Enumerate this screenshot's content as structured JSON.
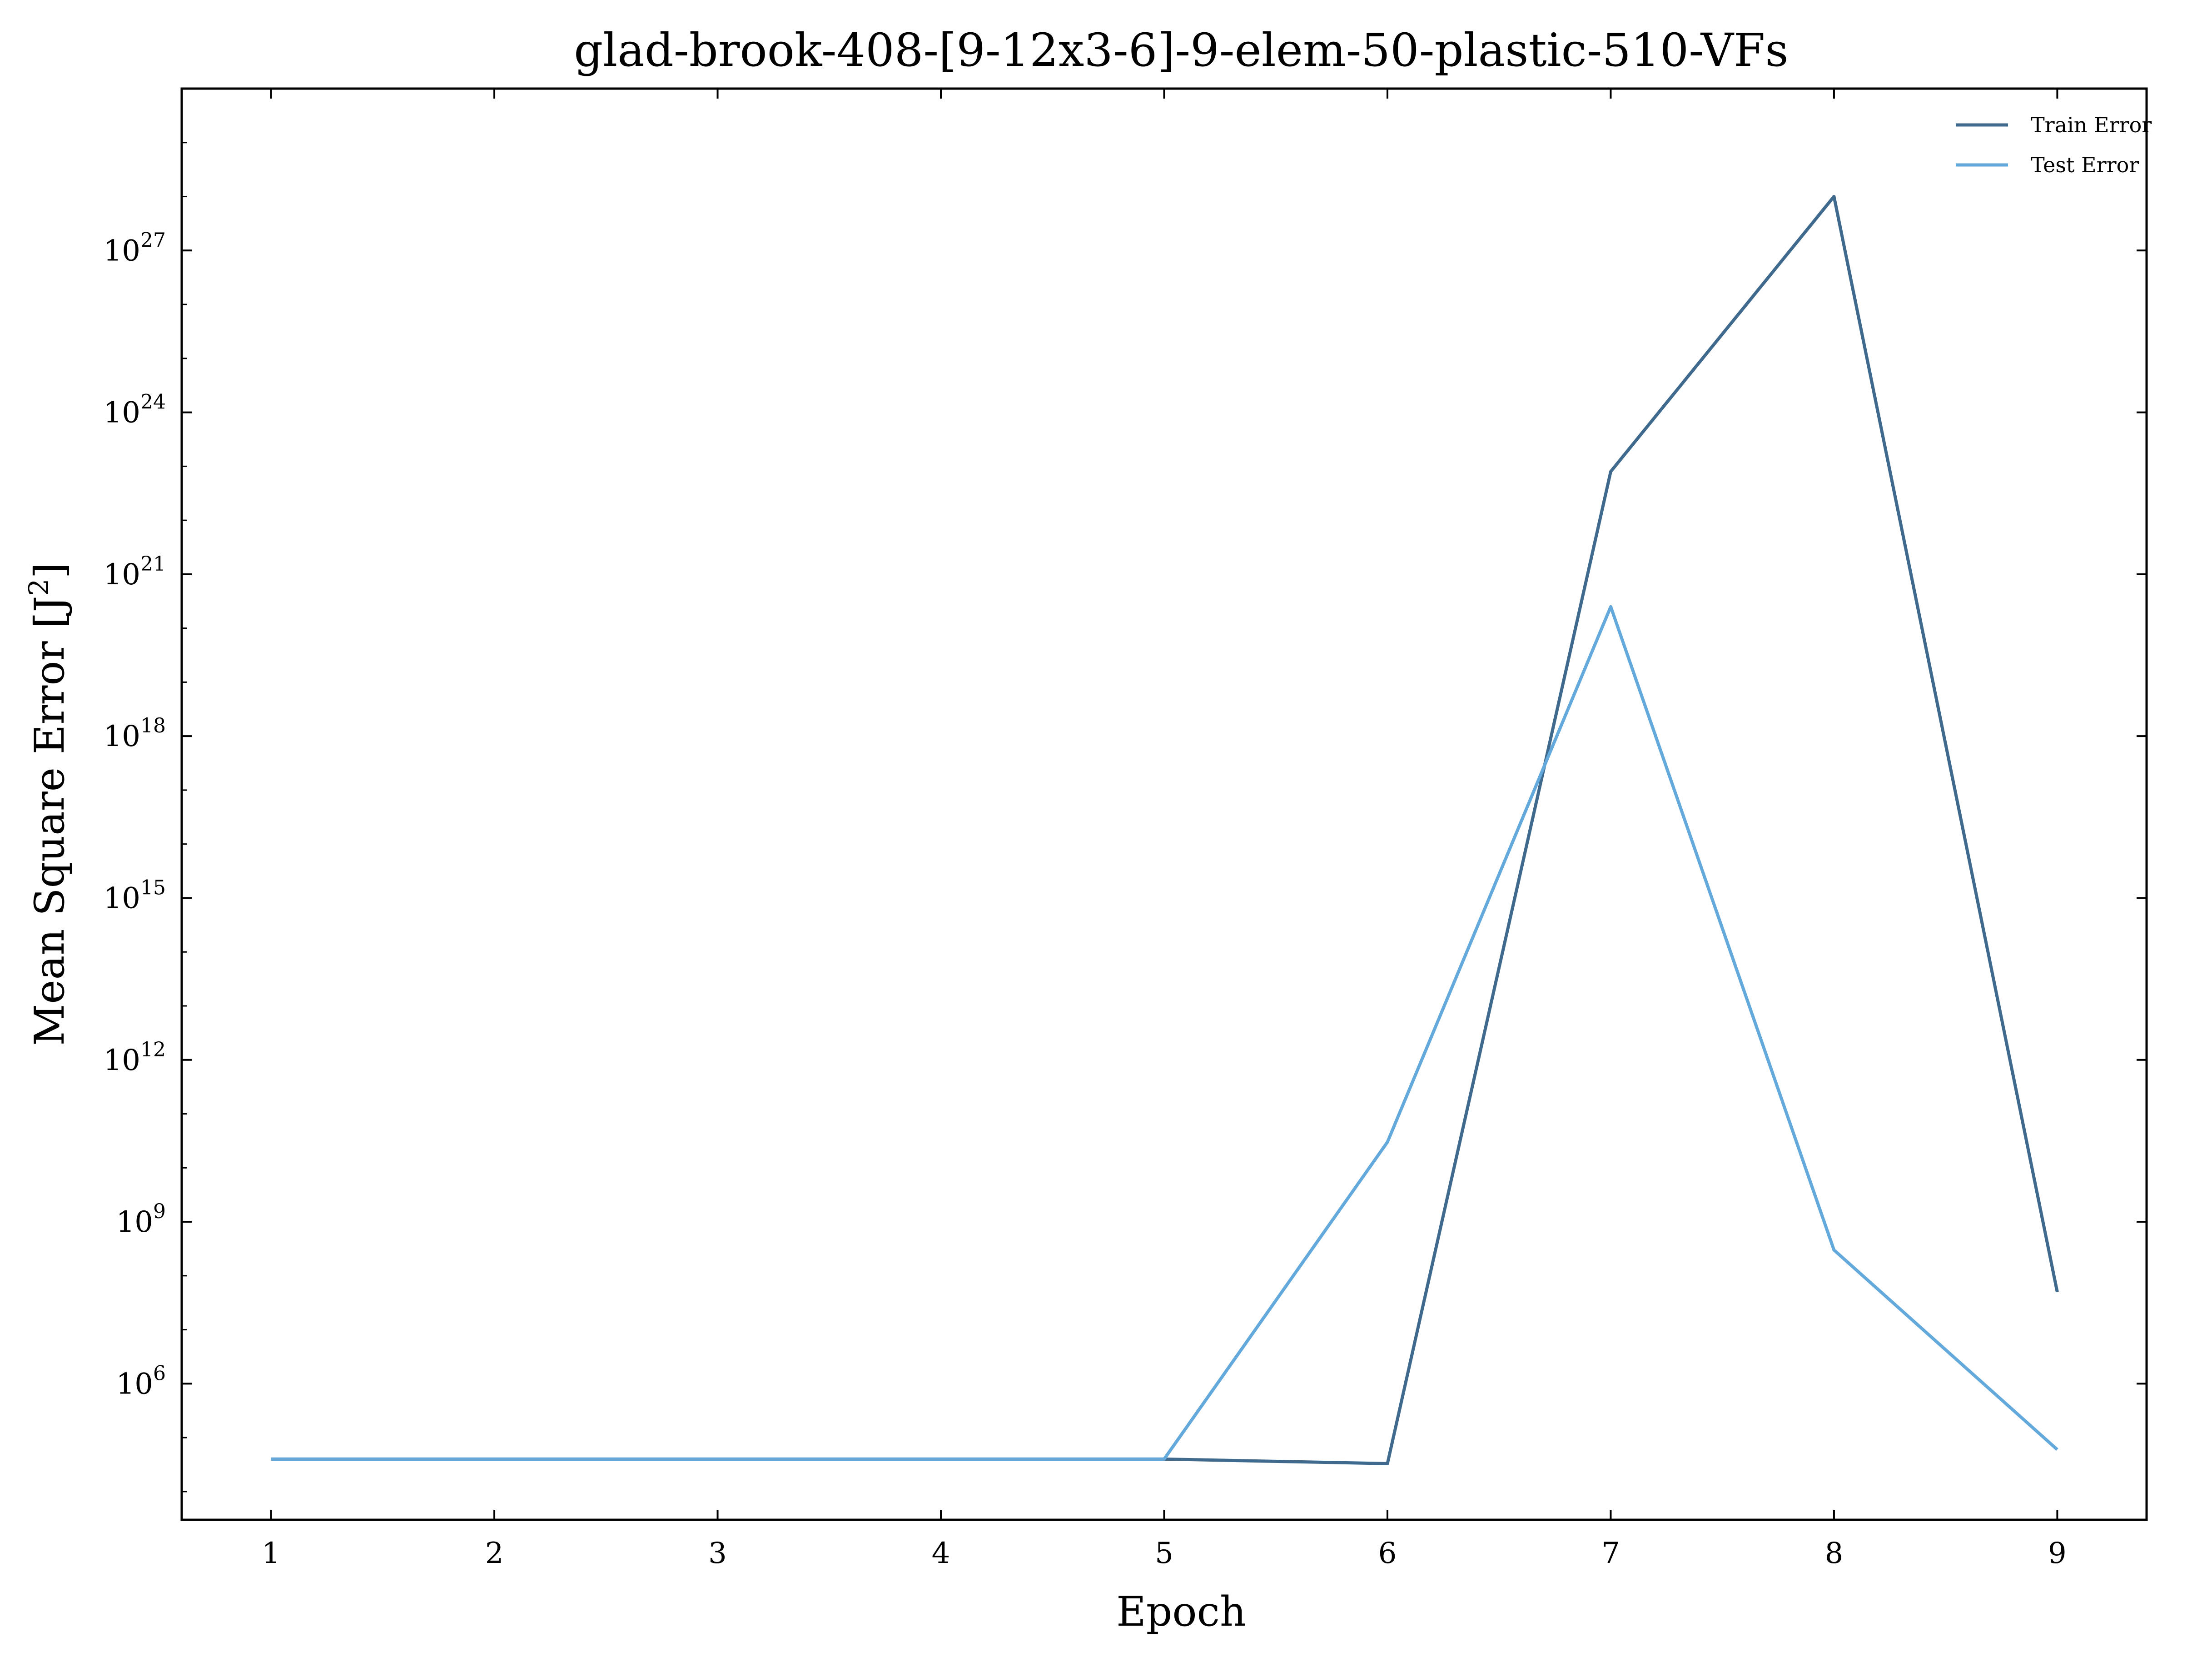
{
  "chart_data": {
    "type": "line",
    "title": "glad-brook-408-[9-12x3-6]-9-elem-50-plastic-510-VFs",
    "xlabel": "Epoch",
    "ylabel_main": "Mean Square Error [J",
    "ylabel_sup": "2",
    "ylabel_tail": "]",
    "x": [
      1,
      2,
      3,
      4,
      5,
      6,
      7,
      8,
      9
    ],
    "x_ticks": [
      "1",
      "2",
      "3",
      "4",
      "5",
      "6",
      "7",
      "8",
      "9"
    ],
    "xlim": [
      0.6,
      9.4
    ],
    "y_scale": "log",
    "ylim": [
      3000.0,
      1e+30
    ],
    "y_ticks": [
      {
        "value": 1000000.0,
        "base": "10",
        "exp": "6"
      },
      {
        "value": 1000000000.0,
        "base": "10",
        "exp": "9"
      },
      {
        "value": 1000000000000.0,
        "base": "10",
        "exp": "12"
      },
      {
        "value": 1000000000000000.0,
        "base": "10",
        "exp": "15"
      },
      {
        "value": 1e+18,
        "base": "10",
        "exp": "18"
      },
      {
        "value": 1e+21,
        "base": "10",
        "exp": "21"
      },
      {
        "value": 1e+24,
        "base": "10",
        "exp": "24"
      },
      {
        "value": 1e+27,
        "base": "10",
        "exp": "27"
      }
    ],
    "grid": false,
    "legend_position": "top-right",
    "series": [
      {
        "name": "Train Error",
        "color": "#3f6a8e",
        "values": [
          40000,
          40000,
          40000,
          40000,
          40000,
          33000,
          8e+22,
          1e+28,
          50000000.0
        ]
      },
      {
        "name": "Test Error",
        "color": "#63a9db",
        "values": [
          40000,
          40000,
          40000,
          40000,
          40000,
          30000000000.0,
          2.5e+20,
          300000000.0,
          60000.0
        ]
      }
    ]
  }
}
